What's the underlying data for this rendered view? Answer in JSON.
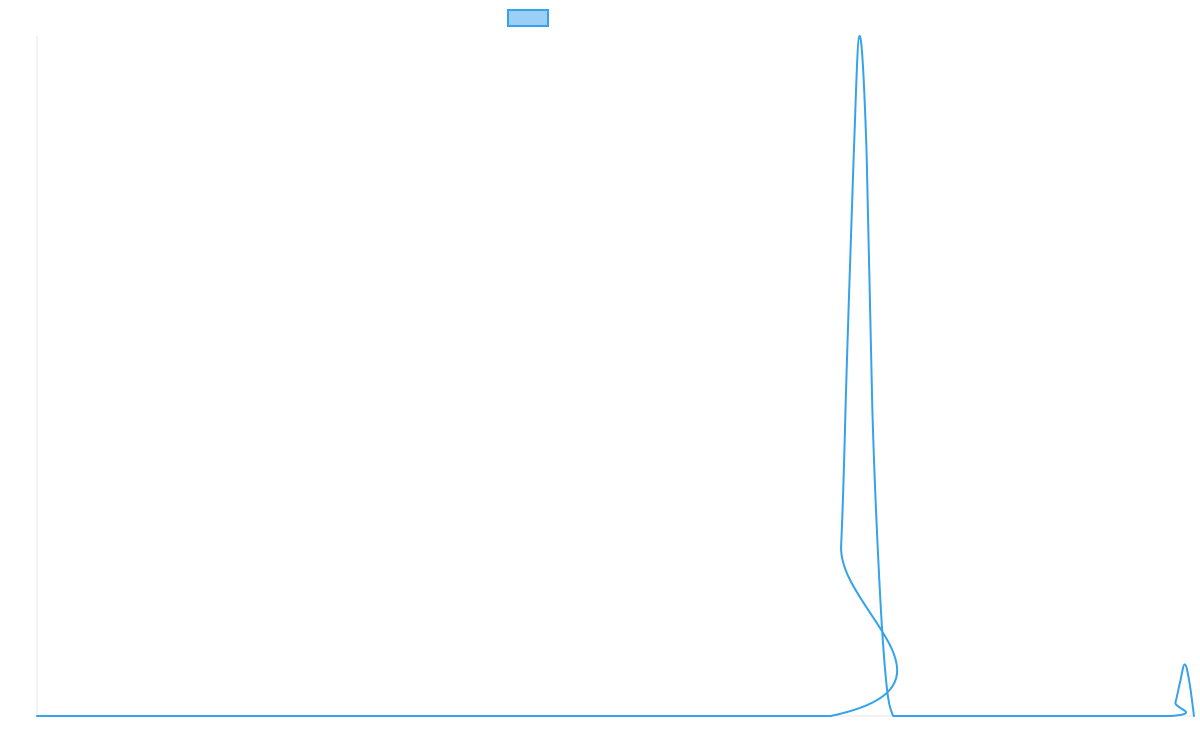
{
  "chart_data": {
    "type": "line",
    "title": "",
    "xlabel": "",
    "ylabel": "",
    "grid": false,
    "legend": "top-center",
    "xlim": [
      0,
      100
    ],
    "ylim": [
      0,
      100
    ],
    "series": [
      {
        "name": "",
        "color": "#36a2eb",
        "fill": "#9ad0f5",
        "x": [
          0,
          68.6,
          69.5,
          70.0,
          70.6,
          71.1,
          71.7,
          72.2,
          72.8,
          73.4,
          74.0,
          74.6,
          75.1,
          75.6,
          76.2,
          76.7,
          77.2,
          77.7,
          78.1,
          78.6,
          79.0,
          79.5,
          80.0,
          80.4,
          80.8,
          81.3,
          81.7,
          82.1,
          82.6,
          83.0,
          98.0,
          98.4,
          98.8,
          99.2,
          99.6,
          100
        ],
        "values": [
          0,
          0,
          25,
          52,
          83,
          100,
          83,
          45,
          20,
          5,
          0,
          0,
          0,
          0,
          0,
          0,
          0,
          0,
          0,
          0,
          0,
          0,
          0,
          0,
          0,
          0,
          0,
          0,
          0,
          0,
          0,
          2,
          5,
          7.6,
          5,
          0
        ]
      }
    ]
  }
}
